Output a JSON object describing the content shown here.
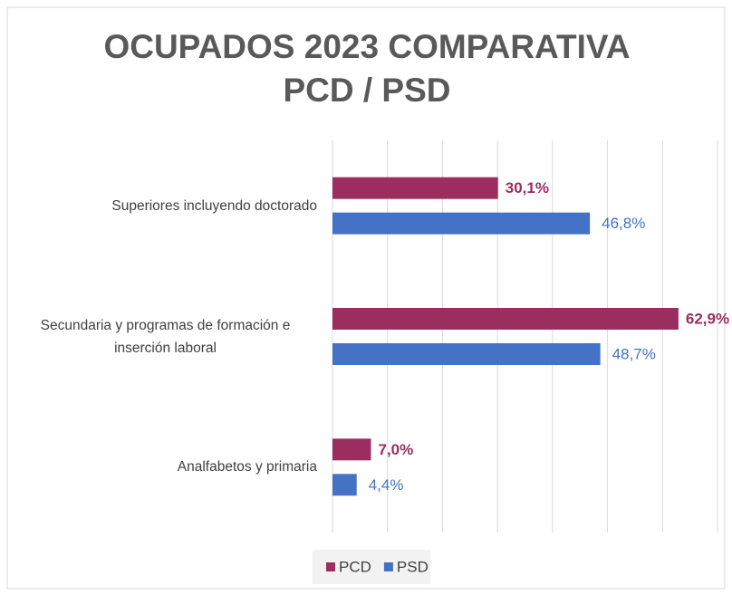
{
  "chart_data": {
    "type": "bar",
    "orientation": "horizontal",
    "title": "OCUPADOS 2023 COMPARATIVA PCD / PSD",
    "categories": [
      "Superiores incluyendo doctorado",
      "Secundaria y programas de formación e inserción laboral",
      "Analfabetos y primaria"
    ],
    "series": [
      {
        "name": "PCD",
        "color": "#9b2d5f",
        "values": [
          30.1,
          62.9,
          7.0
        ],
        "value_labels": [
          "30,1%",
          "62,9%",
          "7,0%"
        ]
      },
      {
        "name": "PSD",
        "color": "#4472c4",
        "values": [
          46.8,
          48.7,
          4.4
        ],
        "value_labels": [
          "46,8%",
          "48,7%",
          "4,4%"
        ]
      }
    ],
    "xlim": [
      0,
      70
    ],
    "xticks": [
      0,
      10,
      20,
      30,
      40,
      50,
      60,
      70
    ],
    "grid": true,
    "legend": "bottom"
  }
}
